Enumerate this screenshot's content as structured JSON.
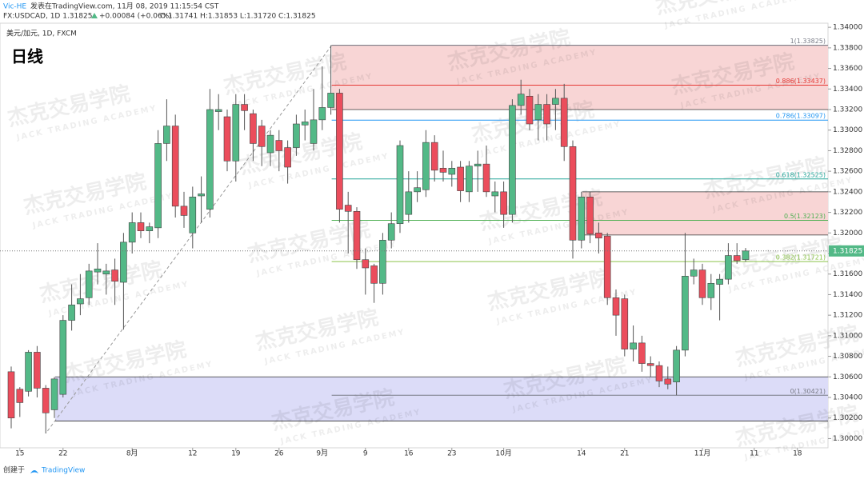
{
  "header": {
    "publisher": "Vic-HE",
    "published": "发表在TradingView.com, 11月 08, 2019 11:15:54 CST",
    "symbol_line": "FX:USDCAD, 1D 1.31825",
    "change": "+0.00084 (+0.06%)",
    "ohlc": "O:1.31741 H:1.31853 L:1.31720 C:1.31825",
    "legend": "美元/加元, 1D, FXCM",
    "timeframe": "日线",
    "watermark": "杰克交易学院",
    "watermark_en": "JACK TRADING ACADEMY",
    "footer": "创建于",
    "brand": "TradingView"
  },
  "chart_data": {
    "type": "candlestick",
    "categories": [
      null,
      "15",
      null,
      null,
      null,
      null,
      "22",
      null,
      null,
      null,
      null,
      null,
      null,
      null,
      "8月",
      null,
      null,
      null,
      null,
      null,
      null,
      "12",
      null,
      null,
      null,
      null,
      "19",
      null,
      null,
      null,
      null,
      "26",
      null,
      null,
      null,
      null,
      "9月",
      null,
      null,
      null,
      null,
      "9",
      null,
      null,
      null,
      null,
      "16",
      null,
      null,
      null,
      null,
      "23",
      null,
      null,
      null,
      null,
      null,
      "10月",
      null,
      null,
      null,
      null,
      null,
      null,
      null,
      null,
      "14",
      null,
      null,
      null,
      null,
      "21",
      null,
      null,
      null,
      null,
      null,
      null,
      null,
      null,
      "11月",
      null,
      null,
      null,
      null,
      null,
      "11",
      null,
      null,
      null,
      null,
      "18",
      null,
      null
    ],
    "open": [
      1.3065,
      1.3048,
      1.3046,
      1.3084,
      1.3049,
      1.3028,
      1.3043,
      1.3115,
      1.3131,
      1.3137,
      1.3162,
      1.316,
      1.3164,
      1.3152,
      1.3191,
      1.321,
      1.3202,
      1.3205,
      1.3287,
      1.3304,
      1.3226,
      1.32,
      1.3236,
      1.3223,
      1.3318,
      1.3313,
      1.327,
      1.3325,
      1.3316,
      1.3304,
      1.3278,
      1.329,
      1.3283,
      1.3283,
      1.3305,
      1.3287,
      1.331,
      1.3322,
      1.3336,
      1.3227,
      1.3221,
      1.3174,
      1.3168,
      1.3151,
      1.3193,
      1.3209,
      1.3218,
      1.324,
      1.3242,
      1.3288,
      1.3263,
      1.3257,
      1.3264,
      1.324,
      1.3265,
      1.3267,
      1.3236,
      1.324,
      1.3218,
      1.3324,
      1.3333,
      1.331,
      1.3325,
      1.3325,
      1.3331,
      1.3284,
      1.3193,
      1.3235,
      1.32,
      1.3197,
      1.3137,
      1.3136,
      1.3087,
      1.3093,
      1.3073,
      1.3071,
      1.3058,
      1.3055,
      1.3086,
      1.3158,
      1.3164,
      1.3137,
      1.315,
      1.3155,
      1.3178,
      1.31741,
      null,
      null,
      null,
      null,
      null,
      null,
      null,
      null
    ],
    "high": [
      1.307,
      1.305,
      1.3086,
      1.309,
      1.3052,
      1.306,
      1.312,
      1.315,
      1.316,
      1.317,
      1.319,
      1.317,
      1.3175,
      1.32,
      1.322,
      1.322,
      1.321,
      1.33,
      1.333,
      1.3315,
      1.324,
      1.3245,
      1.3255,
      1.334,
      1.3335,
      1.332,
      1.3335,
      1.3335,
      1.332,
      1.331,
      1.33,
      1.33,
      1.329,
      1.3315,
      1.332,
      1.334,
      1.3362,
      1.33825,
      1.334,
      1.324,
      1.3225,
      1.3185,
      1.317,
      1.32,
      1.322,
      1.329,
      1.326,
      1.326,
      1.33,
      1.3295,
      1.328,
      1.327,
      1.327,
      1.327,
      1.328,
      1.3285,
      1.325,
      1.325,
      1.333,
      1.3349,
      1.334,
      1.3335,
      1.3335,
      1.334,
      1.3345,
      1.329,
      1.324,
      1.324,
      1.321,
      1.32,
      1.3145,
      1.314,
      1.311,
      1.31,
      1.308,
      1.3075,
      1.307,
      1.309,
      1.32,
      1.3175,
      1.317,
      1.316,
      1.316,
      1.319,
      1.319,
      1.31853,
      null,
      null,
      null,
      null,
      null,
      null,
      null,
      null
    ],
    "low": [
      1.301,
      1.3021,
      1.3041,
      1.304,
      1.3005,
      1.302,
      1.304,
      1.3105,
      1.312,
      1.313,
      1.315,
      1.314,
      1.313,
      1.3106,
      1.318,
      1.3195,
      1.319,
      1.3195,
      1.327,
      1.3215,
      1.3205,
      1.3185,
      1.321,
      1.3215,
      1.33,
      1.326,
      1.325,
      1.33,
      1.327,
      1.3265,
      1.3265,
      1.326,
      1.3248,
      1.3275,
      1.329,
      1.328,
      1.33,
      1.3315,
      1.321,
      1.318,
      1.3165,
      1.314,
      1.3132,
      1.314,
      1.3185,
      1.32,
      1.321,
      1.323,
      1.3235,
      1.325,
      1.325,
      1.3245,
      1.323,
      1.323,
      1.324,
      1.3235,
      1.322,
      1.3205,
      1.321,
      1.3315,
      1.33,
      1.329,
      1.329,
      1.33,
      1.327,
      1.3175,
      1.3185,
      1.319,
      1.318,
      1.313,
      1.31,
      1.308,
      1.3075,
      1.3065,
      1.306,
      1.305,
      1.3048,
      1.30421,
      1.308,
      1.315,
      1.313,
      1.3125,
      1.3115,
      1.315,
      1.317,
      1.3172,
      null,
      null,
      null,
      null,
      null,
      null,
      null,
      null
    ],
    "close": [
      1.302,
      1.3035,
      1.3084,
      1.3049,
      1.3025,
      1.3058,
      1.3115,
      1.313,
      1.3136,
      1.3163,
      1.3165,
      1.3163,
      1.3153,
      1.3191,
      1.321,
      1.3202,
      1.3206,
      1.3287,
      1.3304,
      1.3226,
      1.3217,
      1.3235,
      1.3238,
      1.332,
      1.332,
      1.327,
      1.3325,
      1.3319,
      1.3287,
      1.3284,
      1.3295,
      1.328,
      1.3264,
      1.3306,
      1.3308,
      1.331,
      1.3322,
      1.3336,
      1.3223,
      1.3221,
      1.3174,
      1.3166,
      1.3151,
      1.3193,
      1.3209,
      1.3285,
      1.324,
      1.3244,
      1.3288,
      1.3261,
      1.3259,
      1.3263,
      1.3241,
      1.3265,
      1.3267,
      1.324,
      1.324,
      1.3218,
      1.3324,
      1.3335,
      1.3306,
      1.3325,
      1.3306,
      1.3331,
      1.3284,
      1.3193,
      1.3235,
      1.3199,
      1.3195,
      1.3137,
      1.312,
      1.3087,
      1.3093,
      1.3073,
      1.3071,
      1.3056,
      1.3053,
      1.3086,
      1.3158,
      1.3164,
      1.3137,
      1.3151,
      1.3155,
      1.3178,
      1.3173,
      1.31825,
      null,
      null,
      null,
      null,
      null,
      null,
      null,
      null
    ],
    "up_color": "#53b987",
    "down_color": "#eb4d5c",
    "ylim": [
      1.2991,
      1.3404
    ],
    "yticks": [
      {
        "value": 1.3,
        "label": "1.30000"
      },
      {
        "value": 1.302,
        "label": "1.30200"
      },
      {
        "value": 1.304,
        "label": "1.30400"
      },
      {
        "value": 1.306,
        "label": "1.30600"
      },
      {
        "value": 1.308,
        "label": "1.30800"
      },
      {
        "value": 1.31,
        "label": "1.31000"
      },
      {
        "value": 1.312,
        "label": "1.31200"
      },
      {
        "value": 1.314,
        "label": "1.31400"
      },
      {
        "value": 1.316,
        "label": "1.31600"
      },
      {
        "value": 1.318,
        "label": "1.31800"
      },
      {
        "value": 1.32,
        "label": "1.32000"
      },
      {
        "value": 1.322,
        "label": "1.32200"
      },
      {
        "value": 1.324,
        "label": "1.32400"
      },
      {
        "value": 1.326,
        "label": "1.32600"
      },
      {
        "value": 1.328,
        "label": "1.32800"
      },
      {
        "value": 1.33,
        "label": "1.33000"
      },
      {
        "value": 1.332,
        "label": "1.33200"
      },
      {
        "value": 1.334,
        "label": "1.33400"
      },
      {
        "value": 1.336,
        "label": "1.33600"
      },
      {
        "value": 1.338,
        "label": "1.33800"
      },
      {
        "value": 1.34,
        "label": "1.34000"
      }
    ],
    "last_price": {
      "value": 1.31825,
      "label": "1.31825"
    },
    "zones": [
      {
        "top": 1.33825,
        "bottom": 1.332,
        "start_index": 37,
        "color": "#f8d5d5"
      },
      {
        "top": 1.324,
        "bottom": 1.3198,
        "start_index": 66,
        "color": "#f8d5d5"
      },
      {
        "top": 1.306,
        "bottom": 1.3017,
        "start_index": 5,
        "color": "#dcdcf8"
      }
    ],
    "fib_levels": [
      {
        "value": 1.33825,
        "label": "1(1.33825)",
        "color": "#787b86"
      },
      {
        "value": 1.33437,
        "label": "0.886(1.33437)",
        "color": "#e53935"
      },
      {
        "value": 1.33097,
        "label": "0.786(1.33097)",
        "color": "#2196f3"
      },
      {
        "value": 1.32525,
        "label": "0.618(1.32525)",
        "color": "#26a69a"
      },
      {
        "value": 1.32123,
        "label": "0.5(1.32123)",
        "color": "#4caf50"
      },
      {
        "value": 1.31721,
        "label": "0.382(1.31721)",
        "color": "#8bc34a"
      },
      {
        "value": 1.30421,
        "label": "0(1.30421)",
        "color": "#787b86"
      }
    ]
  }
}
